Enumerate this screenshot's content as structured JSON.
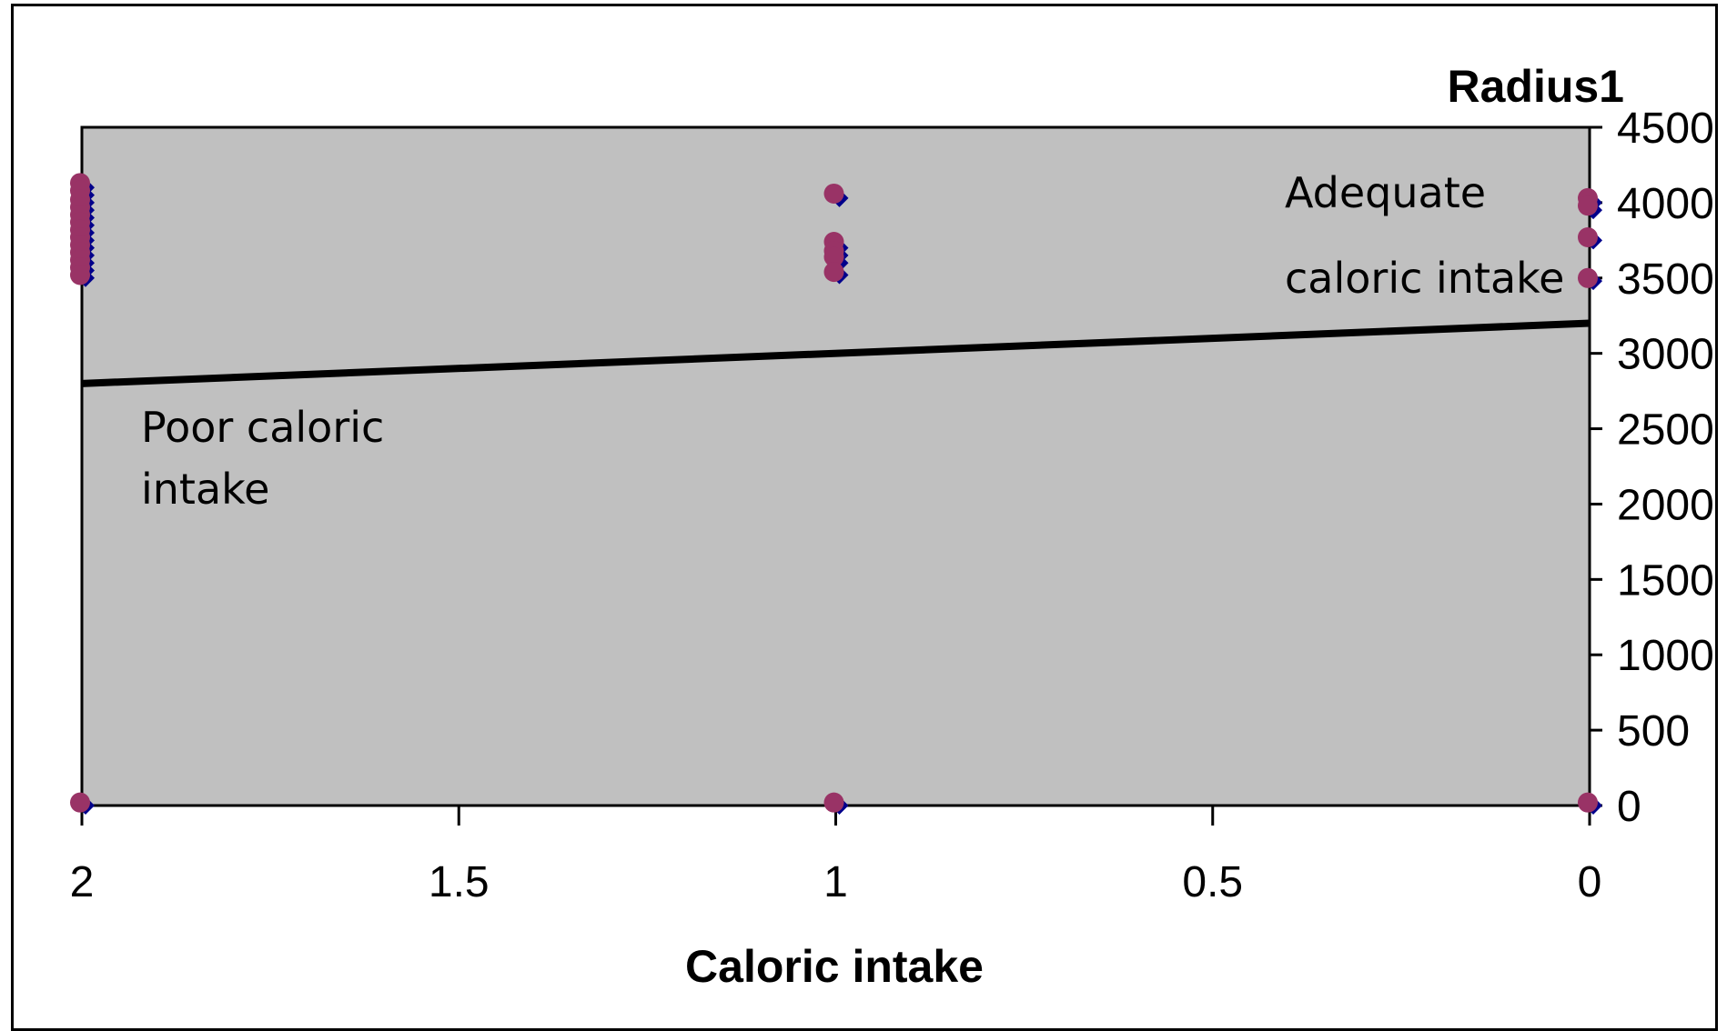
{
  "chart_data": {
    "type": "scatter",
    "title": "",
    "xlabel": "Caloric intake",
    "ylabel": "Radius1",
    "x_reversed": true,
    "xlim": [
      0,
      2
    ],
    "ylim": [
      0,
      4500
    ],
    "x_ticks": [
      2,
      1.5,
      1,
      0.5,
      0
    ],
    "x_tick_labels": [
      "2",
      "1.5",
      "1",
      "0.5",
      "0"
    ],
    "y_ticks": [
      4500,
      4000,
      3500,
      3000,
      2500,
      2000,
      1500,
      1000,
      500,
      0
    ],
    "y_tick_labels": [
      "4500",
      "4000",
      "3500",
      "3000",
      "2500",
      "2000",
      "1500",
      "1000",
      "500",
      "0"
    ],
    "y_axis_side": "right",
    "grid": false,
    "legend": "none",
    "plot_background": "#c0c0c0",
    "series": [
      {
        "marker": "diamond",
        "color": "#00008b",
        "points": [
          [
            2,
            4100
          ],
          [
            2,
            4050
          ],
          [
            2,
            4000
          ],
          [
            2,
            3950
          ],
          [
            2,
            3900
          ],
          [
            2,
            3850
          ],
          [
            2,
            3800
          ],
          [
            2,
            3750
          ],
          [
            2,
            3700
          ],
          [
            2,
            3650
          ],
          [
            2,
            3600
          ],
          [
            2,
            3550
          ],
          [
            2,
            3500
          ],
          [
            2,
            0
          ],
          [
            1,
            4030
          ],
          [
            1,
            3700
          ],
          [
            1,
            3650
          ],
          [
            1,
            3600
          ],
          [
            1,
            3520
          ],
          [
            1,
            0
          ],
          [
            0,
            4000
          ],
          [
            0,
            3950
          ],
          [
            0,
            3750
          ],
          [
            0,
            3480
          ],
          [
            0,
            0
          ]
        ]
      },
      {
        "marker": "circle",
        "color": "#993366",
        "points": [
          [
            2,
            4130
          ],
          [
            2,
            4080
          ],
          [
            2,
            4020
          ],
          [
            2,
            3970
          ],
          [
            2,
            3920
          ],
          [
            2,
            3870
          ],
          [
            2,
            3820
          ],
          [
            2,
            3770
          ],
          [
            2,
            3720
          ],
          [
            2,
            3670
          ],
          [
            2,
            3620
          ],
          [
            2,
            3570
          ],
          [
            2,
            3520
          ],
          [
            2,
            20
          ],
          [
            1,
            4060
          ],
          [
            1,
            3740
          ],
          [
            1,
            3680
          ],
          [
            1,
            3640
          ],
          [
            1,
            3540
          ],
          [
            1,
            20
          ],
          [
            0,
            4030
          ],
          [
            0,
            3980
          ],
          [
            0,
            3770
          ],
          [
            0,
            3500
          ],
          [
            0,
            20
          ]
        ]
      }
    ],
    "lines": [
      {
        "color": "#000000",
        "points": [
          [
            2,
            2800
          ],
          [
            0,
            3200
          ]
        ]
      }
    ],
    "annotations": [
      {
        "id": "adequate",
        "lines": [
          "Adequate",
          "caloric intake"
        ]
      },
      {
        "id": "poor",
        "lines": [
          "Poor caloric",
          "intake"
        ]
      }
    ]
  }
}
